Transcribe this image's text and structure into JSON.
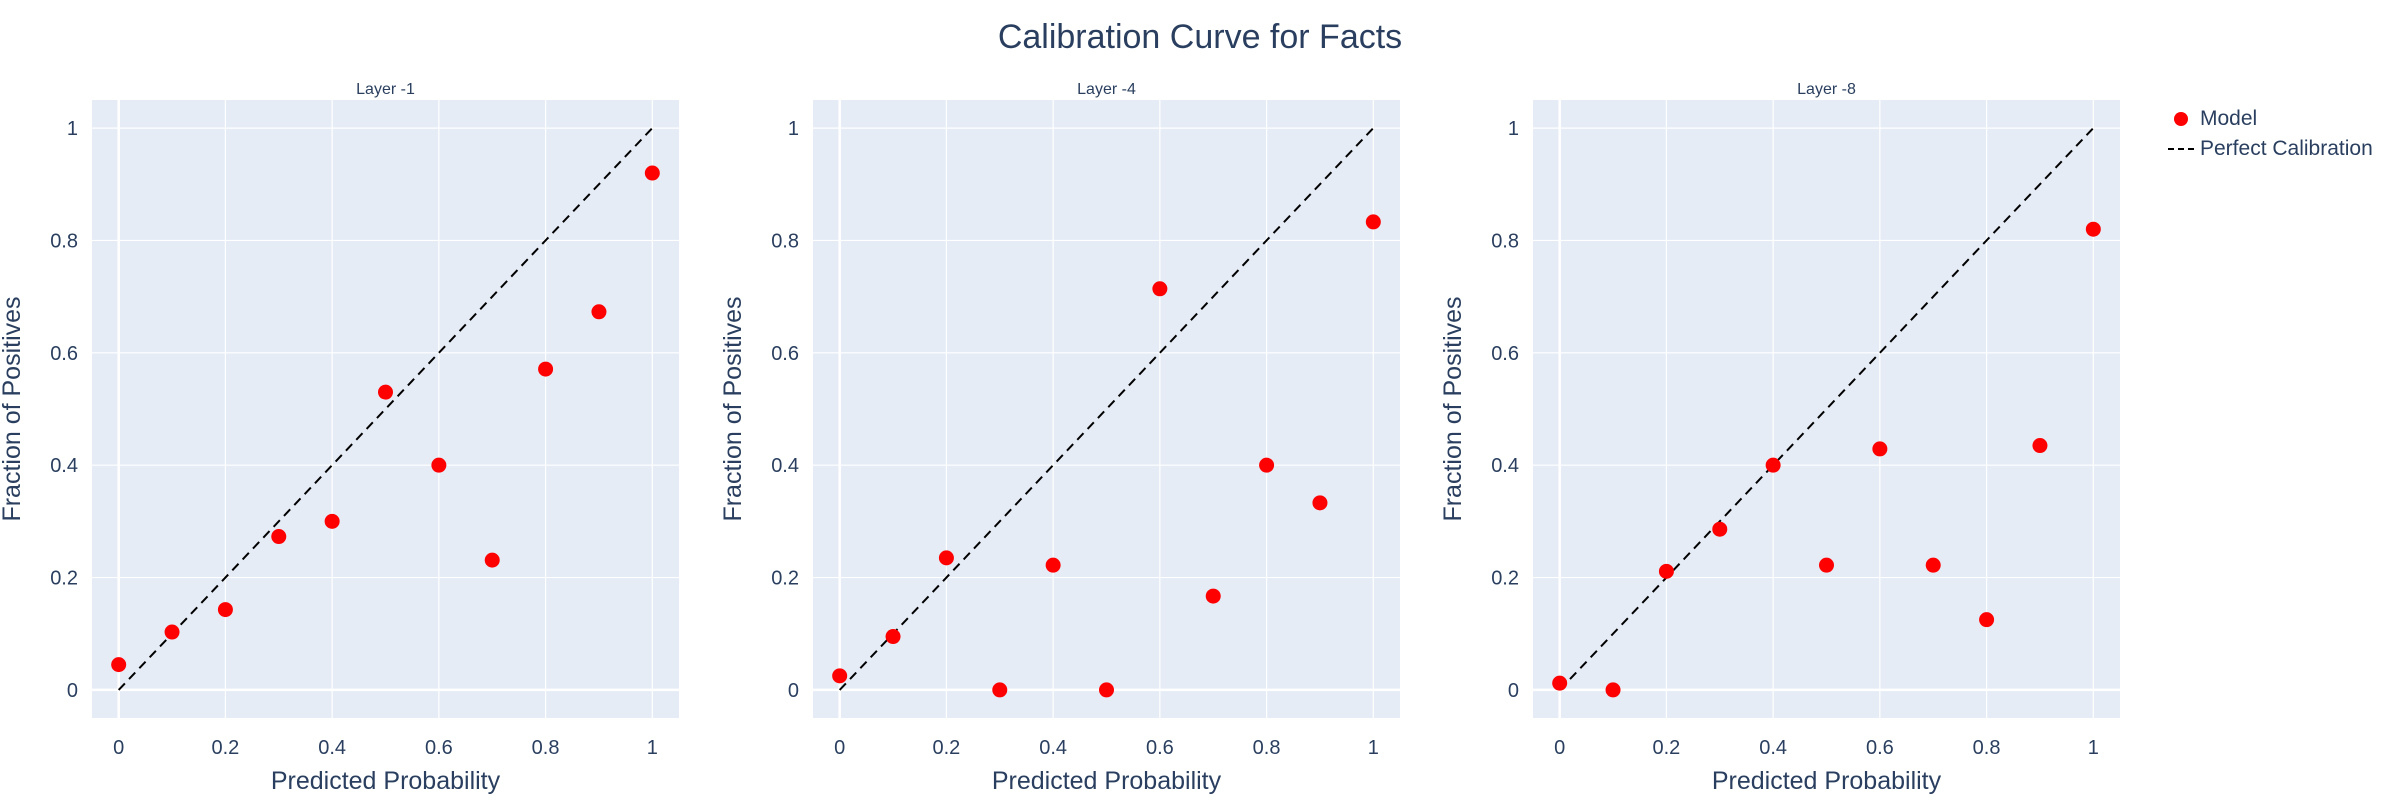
{
  "title": "Calibration Curve for Facts",
  "colors": {
    "model": "#ff0000",
    "diagonal": "#000000",
    "plot_bg": "#e5ecf6",
    "grid": "#ffffff",
    "text": "#2a3f5f"
  },
  "legend": {
    "placement": "top-right",
    "items": [
      {
        "label": "Model",
        "kind": "marker"
      },
      {
        "label": "Perfect Calibration",
        "kind": "dash"
      }
    ]
  },
  "chart_data": [
    {
      "type": "scatter",
      "title": "Layer -1",
      "xlabel": "Predicted Probability",
      "ylabel": "Fraction of Positives",
      "xlim": [
        -0.05,
        1.05
      ],
      "ylim": [
        -0.05,
        1.05
      ],
      "ticks": [
        0,
        0.2,
        0.4,
        0.6,
        0.8,
        1
      ],
      "tick_labels": [
        "0",
        "0.2",
        "0.4",
        "0.6",
        "0.8",
        "1"
      ],
      "series": [
        {
          "name": "Model",
          "x": [
            0,
            0.1,
            0.2,
            0.3,
            0.4,
            0.5,
            0.6,
            0.7,
            0.8,
            0.9,
            1.0
          ],
          "y": [
            0.045,
            0.103,
            0.143,
            0.273,
            0.3,
            0.53,
            0.4,
            0.231,
            0.571,
            0.673,
            0.92
          ]
        },
        {
          "name": "Perfect Calibration",
          "x": [
            0,
            1
          ],
          "y": [
            0,
            1
          ]
        }
      ]
    },
    {
      "type": "scatter",
      "title": "Layer -4",
      "xlabel": "Predicted Probability",
      "ylabel": "Fraction of Positives",
      "xlim": [
        -0.05,
        1.05
      ],
      "ylim": [
        -0.05,
        1.05
      ],
      "ticks": [
        0,
        0.2,
        0.4,
        0.6,
        0.8,
        1
      ],
      "tick_labels": [
        "0",
        "0.2",
        "0.4",
        "0.6",
        "0.8",
        "1"
      ],
      "series": [
        {
          "name": "Model",
          "x": [
            0,
            0.1,
            0.2,
            0.3,
            0.4,
            0.5,
            0.6,
            0.7,
            0.8,
            0.9,
            1.0
          ],
          "y": [
            0.025,
            0.095,
            0.235,
            0.0,
            0.222,
            0.0,
            0.714,
            0.167,
            0.4,
            0.333,
            0.833
          ]
        },
        {
          "name": "Perfect Calibration",
          "x": [
            0,
            1
          ],
          "y": [
            0,
            1
          ]
        }
      ]
    },
    {
      "type": "scatter",
      "title": "Layer -8",
      "xlabel": "Predicted Probability",
      "ylabel": "Fraction of Positives",
      "xlim": [
        -0.05,
        1.05
      ],
      "ylim": [
        -0.05,
        1.05
      ],
      "ticks": [
        0,
        0.2,
        0.4,
        0.6,
        0.8,
        1
      ],
      "tick_labels": [
        "0",
        "0.2",
        "0.4",
        "0.6",
        "0.8",
        "1"
      ],
      "series": [
        {
          "name": "Model",
          "x": [
            0,
            0.1,
            0.2,
            0.3,
            0.4,
            0.5,
            0.6,
            0.7,
            0.8,
            0.9,
            1.0
          ],
          "y": [
            0.012,
            0.0,
            0.211,
            0.286,
            0.4,
            0.222,
            0.429,
            0.222,
            0.125,
            0.435,
            0.82
          ]
        },
        {
          "name": "Perfect Calibration",
          "x": [
            0,
            1
          ],
          "y": [
            0,
            1
          ]
        }
      ]
    }
  ]
}
